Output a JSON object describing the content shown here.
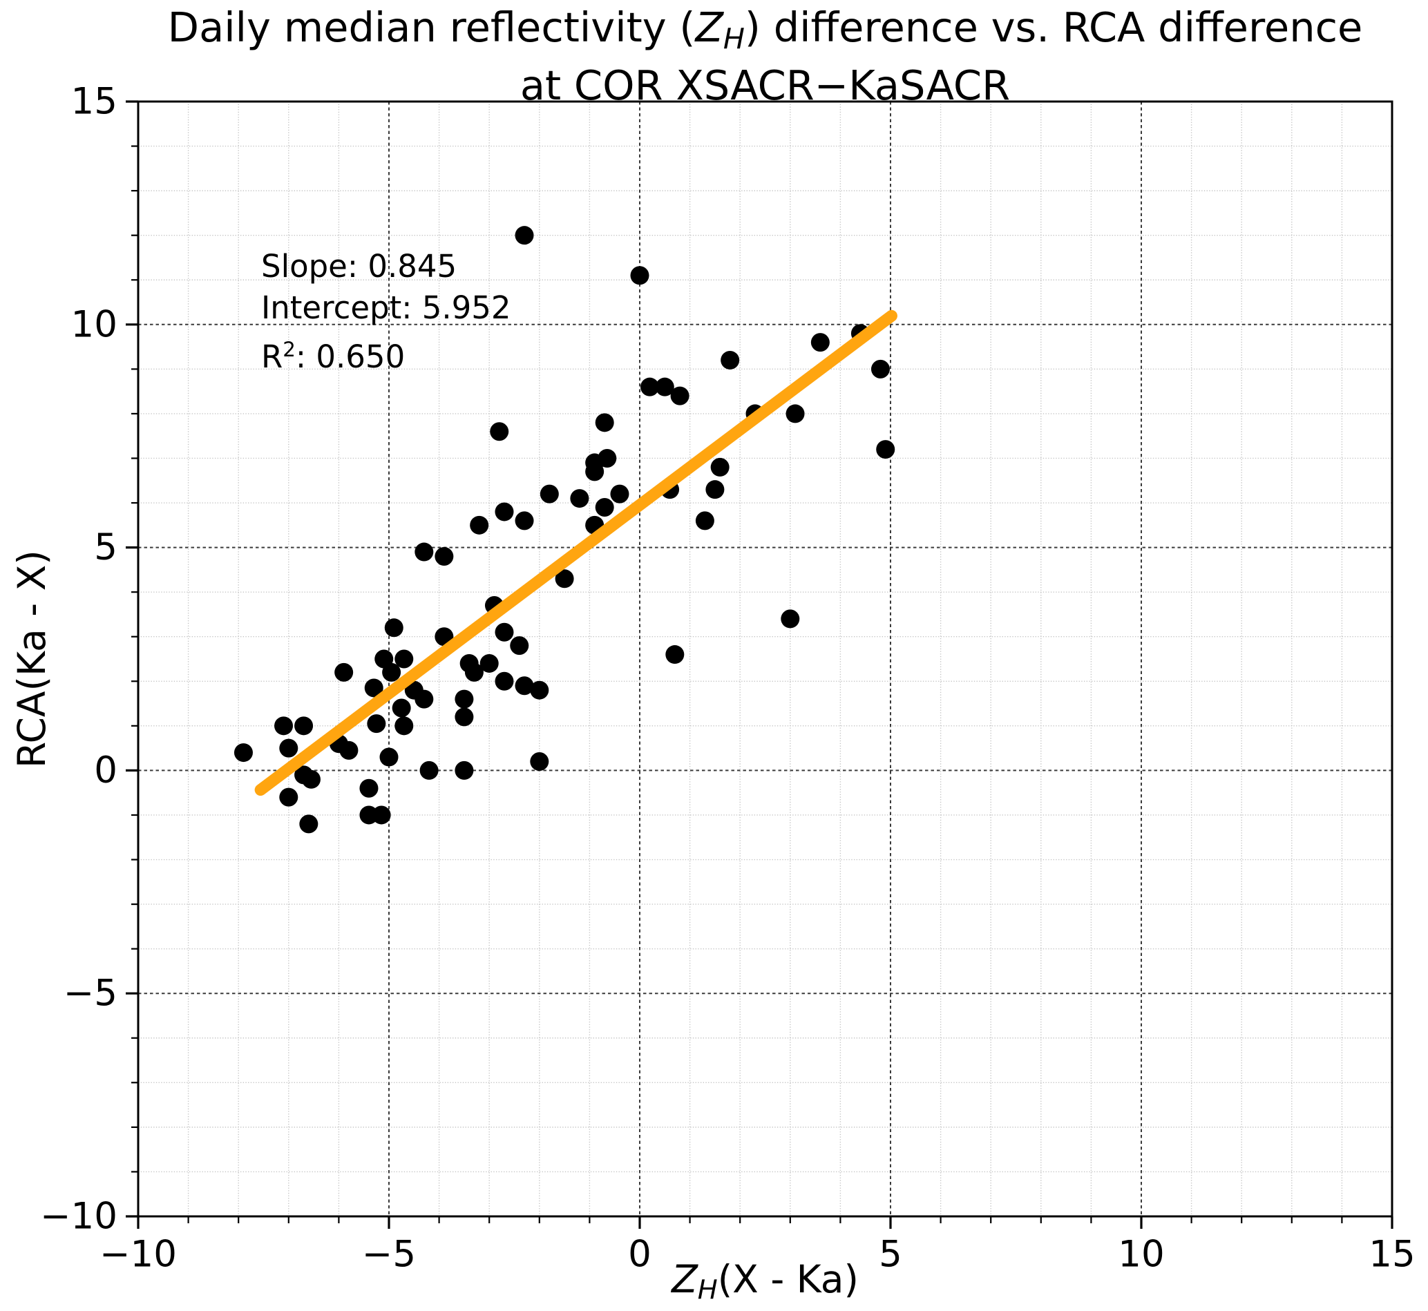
{
  "title": {
    "line1_pre": "Daily median reflectivity (",
    "line1_var": "Z",
    "line1_sub": "H",
    "line1_post": ") difference vs. RCA difference",
    "line2": "at COR XSACR−KaSACR"
  },
  "axes": {
    "x_label_var": "Z",
    "x_label_sub": "H",
    "x_label_post": "(X - Ka)",
    "y_label": "RCA(Ka - X)",
    "x_ticks": [
      -10,
      -5,
      0,
      5,
      10,
      15
    ],
    "y_ticks": [
      -10,
      -5,
      0,
      5,
      10,
      15
    ],
    "minor_tick_step": 1
  },
  "annotation": {
    "slope": "Slope: 0.845",
    "intercept": "Intercept: 5.952",
    "r2_prefix": "R",
    "r2_sup": "2",
    "r2_suffix": ": 0.650"
  },
  "style": {
    "dot_color": "#000000",
    "fit_line_color": "#FFA510",
    "major_grid_color": "#3a3a3a",
    "minor_grid_color": "#c3c3c3",
    "spine_color": "#000000"
  },
  "chart_data": {
    "type": "scatter",
    "title": "Daily median reflectivity (Z_H) difference vs. RCA difference at COR XSACR−KaSACR",
    "xlabel": "Z_H(X - Ka)",
    "ylabel": "RCA(Ka - X)",
    "xlim": [
      -10,
      15
    ],
    "ylim": [
      -10,
      15
    ],
    "grid": "major-dashed and minor-light, both axes",
    "legend": "none",
    "points": [
      [
        -2.3,
        12.0
      ],
      [
        0.0,
        11.1
      ],
      [
        4.4,
        9.8
      ],
      [
        3.6,
        9.6
      ],
      [
        1.8,
        9.2
      ],
      [
        4.8,
        9.0
      ],
      [
        0.2,
        8.6
      ],
      [
        0.5,
        8.6
      ],
      [
        0.8,
        8.4
      ],
      [
        2.3,
        8.0
      ],
      [
        3.1,
        8.0
      ],
      [
        -0.7,
        7.8
      ],
      [
        -2.8,
        7.6
      ],
      [
        4.9,
        7.2
      ],
      [
        -0.65,
        7.0
      ],
      [
        -0.9,
        6.9
      ],
      [
        -0.9,
        6.7
      ],
      [
        1.6,
        6.8
      ],
      [
        1.5,
        6.3
      ],
      [
        0.6,
        6.3
      ],
      [
        -0.4,
        6.2
      ],
      [
        -1.8,
        6.2
      ],
      [
        -1.2,
        6.1
      ],
      [
        -0.7,
        5.9
      ],
      [
        -2.7,
        5.8
      ],
      [
        -2.3,
        5.6
      ],
      [
        1.3,
        5.6
      ],
      [
        -3.2,
        5.5
      ],
      [
        -0.9,
        5.5
      ],
      [
        -4.3,
        4.9
      ],
      [
        -3.9,
        4.8
      ],
      [
        -1.5,
        4.3
      ],
      [
        -2.9,
        3.7
      ],
      [
        3.0,
        3.4
      ],
      [
        -4.9,
        3.2
      ],
      [
        -2.7,
        3.1
      ],
      [
        -3.9,
        3.0
      ],
      [
        -2.4,
        2.8
      ],
      [
        0.7,
        2.6
      ],
      [
        -5.1,
        2.5
      ],
      [
        -4.7,
        2.5
      ],
      [
        -3.4,
        2.4
      ],
      [
        -3.0,
        2.4
      ],
      [
        -3.3,
        2.2
      ],
      [
        -4.95,
        2.2
      ],
      [
        -5.9,
        2.2
      ],
      [
        -2.7,
        2.0
      ],
      [
        -2.3,
        1.9
      ],
      [
        -5.3,
        1.85
      ],
      [
        -4.5,
        1.8
      ],
      [
        -2.0,
        1.8
      ],
      [
        -3.5,
        1.6
      ],
      [
        -4.3,
        1.6
      ],
      [
        -4.75,
        1.4
      ],
      [
        -3.5,
        1.2
      ],
      [
        -5.25,
        1.05
      ],
      [
        -4.7,
        1.0
      ],
      [
        -7.1,
        1.0
      ],
      [
        -6.7,
        1.0
      ],
      [
        -6.0,
        0.6
      ],
      [
        -7.0,
        0.5
      ],
      [
        -5.8,
        0.45
      ],
      [
        -7.9,
        0.4
      ],
      [
        -5.0,
        0.3
      ],
      [
        -2.0,
        0.2
      ],
      [
        -4.2,
        0.0
      ],
      [
        -3.5,
        0.0
      ],
      [
        -6.7,
        -0.1
      ],
      [
        -6.55,
        -0.2
      ],
      [
        -5.4,
        -0.4
      ],
      [
        -7.0,
        -0.6
      ],
      [
        -5.4,
        -1.0
      ],
      [
        -5.15,
        -1.0
      ],
      [
        -6.6,
        -1.2
      ]
    ],
    "fit_line": {
      "slope": 0.845,
      "intercept": 5.952,
      "r_squared": 0.65,
      "x_start": -7.56,
      "x_end": 5.02
    }
  }
}
